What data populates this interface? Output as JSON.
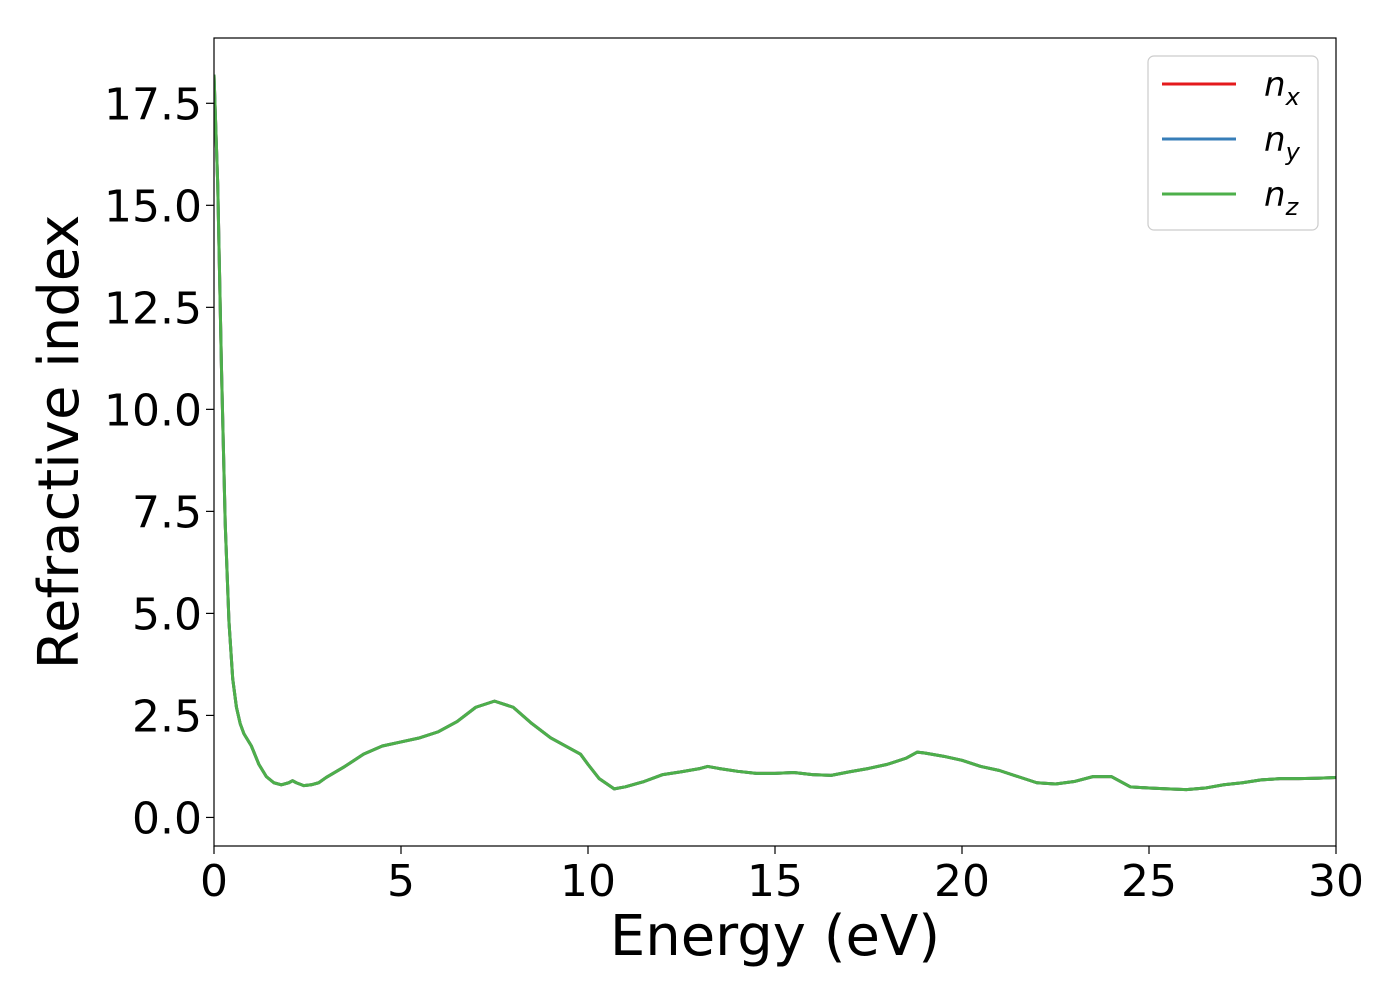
{
  "chart_data": {
    "type": "line",
    "xlabel": "Energy (eV)",
    "ylabel": "Refractive index",
    "xlim": [
      0,
      30
    ],
    "ylim": [
      -0.7,
      19.1
    ],
    "xticks": [
      0,
      5,
      10,
      15,
      20,
      25,
      30
    ],
    "xtick_labels": [
      "0",
      "5",
      "10",
      "15",
      "20",
      "25",
      "30"
    ],
    "yticks": [
      0.0,
      2.5,
      5.0,
      7.5,
      10.0,
      12.5,
      15.0,
      17.5
    ],
    "ytick_labels": [
      "0.0",
      "2.5",
      "5.0",
      "7.5",
      "10.0",
      "12.5",
      "15.0",
      "17.5"
    ],
    "grid": false,
    "legend_position": "top-right",
    "x": [
      0.0,
      0.1,
      0.2,
      0.3,
      0.4,
      0.5,
      0.6,
      0.7,
      0.8,
      1.0,
      1.2,
      1.4,
      1.6,
      1.8,
      2.0,
      2.1,
      2.2,
      2.4,
      2.6,
      2.8,
      3.0,
      3.5,
      4.0,
      4.5,
      5.0,
      5.5,
      6.0,
      6.5,
      7.0,
      7.5,
      8.0,
      8.5,
      9.0,
      9.5,
      9.8,
      10.0,
      10.3,
      10.7,
      11.0,
      11.5,
      12.0,
      12.5,
      13.0,
      13.2,
      13.5,
      14.0,
      14.5,
      15.0,
      15.5,
      16.0,
      16.5,
      17.0,
      17.5,
      18.0,
      18.5,
      18.8,
      19.0,
      19.5,
      20.0,
      20.5,
      21.0,
      21.5,
      22.0,
      22.5,
      23.0,
      23.5,
      24.0,
      24.5,
      25.0,
      25.5,
      26.0,
      26.5,
      27.0,
      27.5,
      28.0,
      28.5,
      29.0,
      29.5,
      30.0
    ],
    "series": [
      {
        "name": "n_x",
        "color": "#e41a1c",
        "values": [
          18.2,
          15.5,
          11.0,
          7.2,
          4.8,
          3.4,
          2.7,
          2.3,
          2.05,
          1.75,
          1.3,
          1.0,
          0.85,
          0.8,
          0.85,
          0.9,
          0.85,
          0.78,
          0.8,
          0.85,
          0.98,
          1.25,
          1.55,
          1.75,
          1.85,
          1.95,
          2.1,
          2.35,
          2.7,
          2.85,
          2.7,
          2.3,
          1.95,
          1.7,
          1.55,
          1.3,
          0.95,
          0.7,
          0.75,
          0.88,
          1.05,
          1.12,
          1.2,
          1.25,
          1.2,
          1.13,
          1.08,
          1.08,
          1.1,
          1.05,
          1.03,
          1.12,
          1.2,
          1.3,
          1.45,
          1.6,
          1.58,
          1.5,
          1.4,
          1.25,
          1.15,
          1.0,
          0.85,
          0.82,
          0.88,
          1.0,
          1.0,
          0.75,
          0.72,
          0.7,
          0.68,
          0.72,
          0.8,
          0.85,
          0.92,
          0.95,
          0.95,
          0.96,
          0.98
        ]
      },
      {
        "name": "n_y",
        "color": "#377eb8",
        "values": [
          18.2,
          15.5,
          11.0,
          7.2,
          4.8,
          3.4,
          2.7,
          2.3,
          2.05,
          1.75,
          1.3,
          1.0,
          0.85,
          0.8,
          0.85,
          0.9,
          0.85,
          0.78,
          0.8,
          0.85,
          0.98,
          1.25,
          1.55,
          1.75,
          1.85,
          1.95,
          2.1,
          2.35,
          2.7,
          2.85,
          2.7,
          2.3,
          1.95,
          1.7,
          1.55,
          1.3,
          0.95,
          0.7,
          0.75,
          0.88,
          1.05,
          1.12,
          1.2,
          1.25,
          1.2,
          1.13,
          1.08,
          1.08,
          1.1,
          1.05,
          1.03,
          1.12,
          1.2,
          1.3,
          1.45,
          1.6,
          1.58,
          1.5,
          1.4,
          1.25,
          1.15,
          1.0,
          0.85,
          0.82,
          0.88,
          1.0,
          1.0,
          0.75,
          0.72,
          0.7,
          0.68,
          0.72,
          0.8,
          0.85,
          0.92,
          0.95,
          0.95,
          0.96,
          0.98
        ]
      },
      {
        "name": "n_z",
        "color": "#4daf4a",
        "values": [
          18.2,
          15.5,
          11.0,
          7.2,
          4.8,
          3.4,
          2.7,
          2.3,
          2.05,
          1.75,
          1.3,
          1.0,
          0.85,
          0.8,
          0.85,
          0.9,
          0.85,
          0.78,
          0.8,
          0.85,
          0.98,
          1.25,
          1.55,
          1.75,
          1.85,
          1.95,
          2.1,
          2.35,
          2.7,
          2.85,
          2.7,
          2.3,
          1.95,
          1.7,
          1.55,
          1.3,
          0.95,
          0.7,
          0.75,
          0.88,
          1.05,
          1.12,
          1.2,
          1.25,
          1.2,
          1.13,
          1.08,
          1.08,
          1.1,
          1.05,
          1.03,
          1.12,
          1.2,
          1.3,
          1.45,
          1.6,
          1.58,
          1.5,
          1.4,
          1.25,
          1.15,
          1.0,
          0.85,
          0.82,
          0.88,
          1.0,
          1.0,
          0.75,
          0.72,
          0.7,
          0.68,
          0.72,
          0.8,
          0.85,
          0.92,
          0.95,
          0.95,
          0.96,
          0.98
        ]
      }
    ],
    "legend": [
      {
        "base": "n",
        "sub": "x"
      },
      {
        "base": "n",
        "sub": "y"
      },
      {
        "base": "n",
        "sub": "z"
      }
    ]
  }
}
